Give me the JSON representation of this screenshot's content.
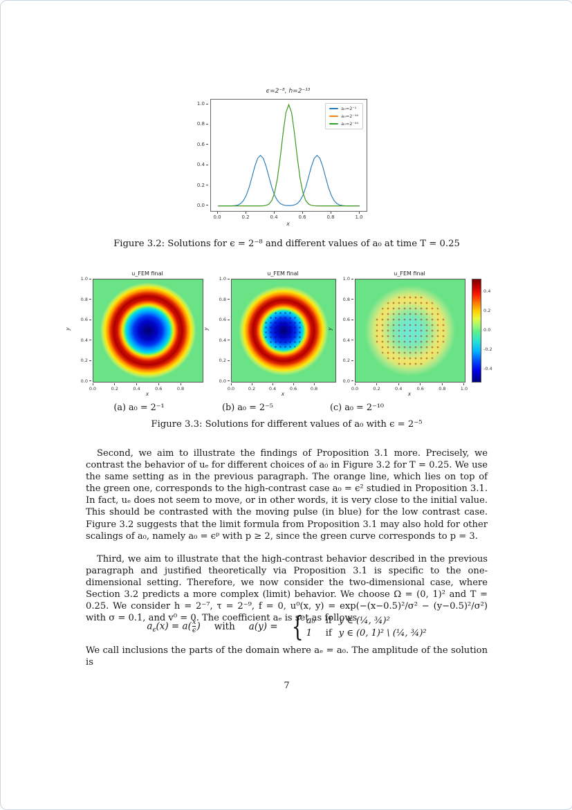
{
  "page": {
    "number": "7"
  },
  "figures": {
    "fig32_caption": "Figure 3.2: Solutions for ϵ = 2⁻⁸ and different values of a₀ at time T = 0.25",
    "fig33_caption": "Figure 3.3: Solutions for different values of a₀ with ϵ = 2⁻⁵",
    "sub_a": "(a) a₀ = 2⁻¹",
    "sub_b": "(b) a₀ = 2⁻⁵",
    "sub_c": "(c) a₀ = 2⁻¹⁰"
  },
  "text": {
    "para1": "Second, we aim to illustrate the findings of Proposition 3.1 more. Precisely, we contrast the behavior of uₑ for different choices of a₀ in Figure 3.2 for T = 0.25. We use the same setting as in the previous paragraph. The orange line, which lies on top of the green one, corresponds to the high-contrast case a₀ = ϵ² studied in Proposition 3.1. In fact, uₑ does not seem to move, or in other words, it is very close to the initial value. This should be contrasted with the moving pulse (in blue) for the low contrast case. Figure 3.2 suggests that the limit formula from Proposition 3.1 may also hold for other scalings of a₀, namely a₀ = ϵᵖ with p ≥ 2, since the green curve corresponds to p = 3.",
    "para2": "Third, we aim to illustrate that the high-contrast behavior described in the previous paragraph and justified theoretically via Proposition 3.1 is specific to the one-dimensional setting. Therefore, we now consider the two-dimensional case, where Section 3.2 predicts a more complex (limit) behavior. We choose Ω = (0, 1)² and T = 0.25. We consider h = 2⁻⁷, τ = 2⁻⁹, f = 0, u⁰(x, y) = exp(−(x−0.5)²/σ² − (y−0.5)²/σ²) with σ = 0.1, and v⁰ = 0. The coefficient aₑ is set as follows",
    "para3": "We call inclusions the parts of the domain where aₑ = a₀. The amplitude of the solution is"
  },
  "equation": {
    "lhs_base": "a",
    "lhs_sub": "ϵ",
    "lhs_rest": "(x) = a(",
    "frac_num": "x",
    "frac_den": "ϵ",
    "rhs_paren": ")",
    "connector": "with",
    "mid": "a(y) =",
    "brace": "{",
    "case1_val": "a₀",
    "case1_if": "if",
    "case1_cond": "y ∈ (¼, ¾)²",
    "case2_val": "1",
    "case2_if": "if",
    "case2_cond": "y ∈ (0, 1)² \\ (¼, ¾)²"
  },
  "chart_data": [
    {
      "type": "line",
      "title": "ϵ=2⁻⁸, h=2⁻¹³",
      "xlabel": "x",
      "ylabel": "",
      "xlim": [
        -0.05,
        1.05
      ],
      "ylim": [
        -0.05,
        1.05
      ],
      "xticks": [
        "0.0",
        "0.2",
        "0.4",
        "0.6",
        "0.8",
        "1.0"
      ],
      "yticks": [
        "0.0",
        "0.2",
        "0.4",
        "0.6",
        "0.8",
        "1.0"
      ],
      "grid": false,
      "legend_position": "upper right",
      "x": [
        0,
        0.02,
        0.04,
        0.06,
        0.08,
        0.1,
        0.12,
        0.14,
        0.16,
        0.18,
        0.2,
        0.22,
        0.24,
        0.26,
        0.28,
        0.3,
        0.32,
        0.34,
        0.36,
        0.38,
        0.4,
        0.42,
        0.44,
        0.46,
        0.48,
        0.5,
        0.52,
        0.54,
        0.56,
        0.58,
        0.6,
        0.62,
        0.64,
        0.66,
        0.68,
        0.7,
        0.72,
        0.74,
        0.76,
        0.78,
        0.8,
        0.82,
        0.84,
        0.86,
        0.88,
        0.9,
        0.92,
        0.94,
        0.96,
        0.98,
        1
      ],
      "series": [
        {
          "name": "a₀=2⁻¹",
          "color": "#1f77b4",
          "values": [
            0,
            0,
            0,
            0,
            0,
            0.001,
            0.003,
            0.009,
            0.023,
            0.053,
            0.105,
            0.184,
            0.285,
            0.389,
            0.47,
            0.5,
            0.47,
            0.389,
            0.285,
            0.184,
            0.105,
            0.053,
            0.023,
            0.01,
            0.004,
            0.003,
            0.004,
            0.01,
            0.023,
            0.053,
            0.105,
            0.184,
            0.285,
            0.389,
            0.47,
            0.5,
            0.47,
            0.389,
            0.285,
            0.184,
            0.105,
            0.053,
            0.023,
            0.009,
            0.003,
            0.001,
            0,
            0,
            0,
            0,
            0
          ]
        },
        {
          "name": "a₀=2⁻¹⁶",
          "color": "#ff7f0e",
          "values": [
            0,
            0,
            0,
            0,
            0,
            0,
            0,
            0,
            0,
            0,
            0,
            0,
            0,
            0,
            0,
            0,
            0.001,
            0.005,
            0.018,
            0.053,
            0.13,
            0.271,
            0.48,
            0.721,
            0.922,
            1,
            0.922,
            0.721,
            0.48,
            0.271,
            0.13,
            0.053,
            0.018,
            0.005,
            0.001,
            0,
            0,
            0,
            0,
            0,
            0,
            0,
            0,
            0,
            0,
            0,
            0,
            0,
            0,
            0,
            0
          ]
        },
        {
          "name": "a₀=2⁻²⁴",
          "color": "#2ca02c",
          "values": [
            0,
            0,
            0,
            0,
            0,
            0,
            0,
            0,
            0,
            0,
            0,
            0,
            0,
            0,
            0,
            0,
            0.001,
            0.005,
            0.018,
            0.053,
            0.13,
            0.271,
            0.48,
            0.721,
            0.922,
            1,
            0.922,
            0.721,
            0.48,
            0.271,
            0.13,
            0.053,
            0.018,
            0.005,
            0.001,
            0,
            0,
            0,
            0,
            0,
            0,
            0,
            0,
            0,
            0,
            0,
            0,
            0,
            0,
            0,
            0
          ]
        }
      ]
    },
    {
      "type": "heatmap",
      "panel": "a",
      "title": "u_FEM final",
      "xlabel": "x",
      "ylabel": "y",
      "xrange": [
        0,
        1
      ],
      "yrange": [
        0,
        1
      ],
      "xticks": [
        "0.0",
        "0.2",
        "0.4",
        "0.6",
        "0.8"
      ],
      "yticks": [
        "0.0",
        "0.2",
        "0.4",
        "0.6",
        "0.8",
        "1.0"
      ],
      "a0": "2⁻¹",
      "description": "Radially symmetric ring wave centered at (0.5, 0.5): dark blue core (value ≈ −0.45) for r < 0.17, bright red annulus (value ≈ +0.5) for 0.2 < r < 0.33, green background (≈ 0) elsewhere"
    },
    {
      "type": "heatmap",
      "panel": "b",
      "title": "u_FEM final",
      "xlabel": "x",
      "ylabel": "y",
      "xrange": [
        0,
        1
      ],
      "yrange": [
        0,
        1
      ],
      "xticks": [
        "0.0",
        "0.2",
        "0.4",
        "0.6",
        "0.8"
      ],
      "yticks": [
        "0.0",
        "0.2",
        "0.4",
        "0.6",
        "0.8",
        "1.0"
      ],
      "a0": "2⁻⁵",
      "description": "Same ring structure but slightly smaller: blue core r < 0.14, red annulus 0.17 < r < 0.30 with speckled mesh dots, green background"
    },
    {
      "type": "heatmap",
      "panel": "c",
      "title": "u_FEM final",
      "xlabel": "x",
      "ylabel": "y",
      "xrange": [
        0,
        1
      ],
      "yrange": [
        0,
        1
      ],
      "xticks": [
        "0.0",
        "0.2",
        "0.4",
        "0.6",
        "0.8",
        "1.0"
      ],
      "yticks": [
        "0.0",
        "0.2",
        "0.4",
        "0.6",
        "0.8",
        "1.0"
      ],
      "a0": "2⁻¹⁰",
      "description": "Faint pattern: light cyan core (≈ −0.1) r < 0.15, pale yellow annulus (≈ +0.2) 0.2 < r < 0.35 with grid of small dark mesh dots, green background (≈ 0)",
      "colorbar": {
        "ticks": [
          "0.4",
          "0.2",
          "0.0",
          "-0.2",
          "-0.4"
        ],
        "vmin": -0.55,
        "vmax": 0.55,
        "colormap": "jet"
      }
    }
  ],
  "colors": {
    "mpl_blue": "#1f77b4",
    "mpl_orange": "#ff7f0e",
    "mpl_green": "#2ca02c",
    "hm_background_green": "#69e385",
    "hm_ring_red": "#b00000",
    "hm_core_blue": "#00006e",
    "cbar_top_dark_red": "#7f0000",
    "cbar_bottom_dark_blue": "#00007f"
  }
}
